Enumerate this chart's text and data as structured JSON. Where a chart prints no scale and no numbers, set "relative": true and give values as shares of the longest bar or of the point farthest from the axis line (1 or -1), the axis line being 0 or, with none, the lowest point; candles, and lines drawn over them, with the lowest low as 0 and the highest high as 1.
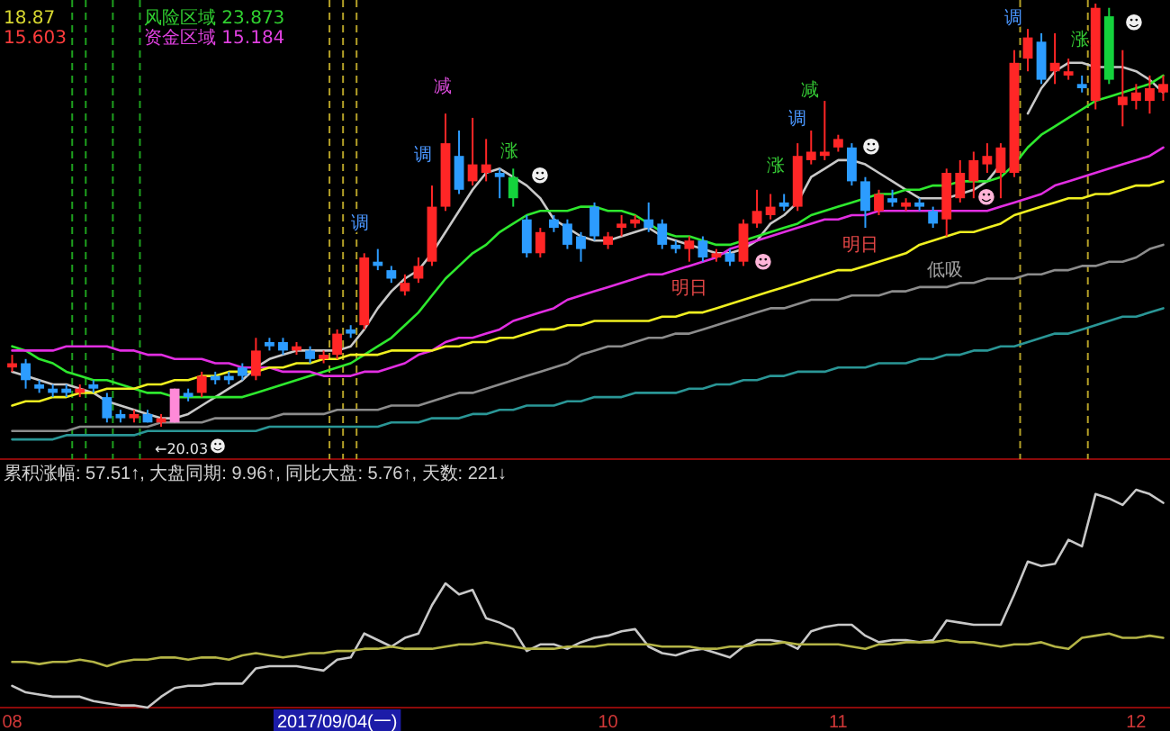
{
  "chart_data": [
    {
      "type": "candlestick",
      "relative": true,
      "tick_labels": false,
      "categories": [
        null,
        null,
        null,
        null,
        null,
        null,
        null,
        null,
        null,
        null,
        null,
        null,
        null,
        null,
        null,
        null,
        null,
        null,
        null,
        null,
        null,
        null,
        null,
        null,
        null,
        null,
        null,
        null,
        null,
        null,
        null,
        null,
        null,
        null,
        null,
        null,
        null,
        null,
        null,
        null,
        null,
        null,
        null,
        null,
        null,
        null,
        null,
        null,
        null,
        null,
        null,
        null,
        null,
        null,
        null,
        null,
        null,
        null,
        null,
        null,
        null,
        null,
        null,
        null,
        null,
        null,
        null,
        null,
        null,
        null,
        null,
        null,
        null,
        null,
        null,
        null,
        null,
        null,
        null,
        null,
        null,
        null,
        null,
        null,
        null,
        null
      ],
      "ohlc": [
        [
          0.14,
          0.17,
          0.13,
          0.15
        ],
        [
          0.15,
          0.16,
          0.09,
          0.11
        ],
        [
          0.1,
          0.11,
          0.08,
          0.09
        ],
        [
          0.09,
          0.1,
          0.07,
          0.08
        ],
        [
          0.09,
          0.1,
          0.07,
          0.08
        ],
        [
          0.08,
          0.1,
          0.07,
          0.09
        ],
        [
          0.1,
          0.11,
          0.08,
          0.09
        ],
        [
          0.07,
          0.08,
          0.01,
          0.02
        ],
        [
          0.03,
          0.04,
          0.01,
          0.02
        ],
        [
          0.02,
          0.04,
          0.01,
          0.03
        ],
        [
          0.03,
          0.04,
          0.01,
          0.01
        ],
        [
          0.01,
          0.03,
          0.0,
          0.02
        ],
        [
          0.01,
          0.09,
          0.01,
          0.09
        ],
        [
          0.08,
          0.09,
          0.06,
          0.07
        ],
        [
          0.08,
          0.13,
          0.07,
          0.12
        ],
        [
          0.12,
          0.13,
          0.1,
          0.11
        ],
        [
          0.12,
          0.13,
          0.1,
          0.11
        ],
        [
          0.14,
          0.15,
          0.11,
          0.12
        ],
        [
          0.12,
          0.21,
          0.11,
          0.18
        ],
        [
          0.2,
          0.21,
          0.18,
          0.19
        ],
        [
          0.2,
          0.21,
          0.17,
          0.18
        ],
        [
          0.18,
          0.2,
          0.17,
          0.19
        ],
        [
          0.18,
          0.19,
          0.15,
          0.16
        ],
        [
          0.16,
          0.18,
          0.15,
          0.17
        ],
        [
          0.17,
          0.23,
          0.16,
          0.22
        ],
        [
          0.23,
          0.24,
          0.21,
          0.22
        ],
        [
          0.24,
          0.41,
          0.23,
          0.4
        ],
        [
          0.39,
          0.42,
          0.37,
          0.38
        ],
        [
          0.37,
          0.38,
          0.34,
          0.35
        ],
        [
          0.32,
          0.36,
          0.31,
          0.34
        ],
        [
          0.35,
          0.4,
          0.34,
          0.38
        ],
        [
          0.39,
          0.57,
          0.38,
          0.52
        ],
        [
          0.52,
          0.74,
          0.51,
          0.67
        ],
        [
          0.64,
          0.7,
          0.55,
          0.56
        ],
        [
          0.58,
          0.73,
          0.57,
          0.62
        ],
        [
          0.6,
          0.68,
          0.58,
          0.62
        ],
        [
          0.6,
          0.61,
          0.54,
          0.59
        ],
        [
          0.59,
          0.61,
          0.52,
          0.54
        ],
        [
          0.49,
          0.5,
          0.4,
          0.41
        ],
        [
          0.41,
          0.47,
          0.4,
          0.46
        ],
        [
          0.49,
          0.5,
          0.46,
          0.47
        ],
        [
          0.48,
          0.49,
          0.42,
          0.43
        ],
        [
          0.45,
          0.46,
          0.39,
          0.42
        ],
        [
          0.52,
          0.53,
          0.44,
          0.45
        ],
        [
          0.43,
          0.46,
          0.42,
          0.45
        ],
        [
          0.47,
          0.5,
          0.45,
          0.48
        ],
        [
          0.48,
          0.5,
          0.47,
          0.49
        ],
        [
          0.49,
          0.53,
          0.46,
          0.47
        ],
        [
          0.48,
          0.49,
          0.42,
          0.43
        ],
        [
          0.43,
          0.44,
          0.41,
          0.42
        ],
        [
          0.42,
          0.45,
          0.39,
          0.44
        ],
        [
          0.44,
          0.45,
          0.39,
          0.4
        ],
        [
          0.4,
          0.42,
          0.39,
          0.41
        ],
        [
          0.41,
          0.42,
          0.38,
          0.39
        ],
        [
          0.39,
          0.49,
          0.38,
          0.48
        ],
        [
          0.48,
          0.56,
          0.47,
          0.51
        ],
        [
          0.5,
          0.55,
          0.49,
          0.52
        ],
        [
          0.53,
          0.55,
          0.51,
          0.52
        ],
        [
          0.52,
          0.67,
          0.51,
          0.64
        ],
        [
          0.63,
          0.7,
          0.62,
          0.65
        ],
        [
          0.64,
          0.77,
          0.63,
          0.65
        ],
        [
          0.66,
          0.69,
          0.65,
          0.68
        ],
        [
          0.66,
          0.67,
          0.57,
          0.58
        ],
        [
          0.58,
          0.59,
          0.47,
          0.51
        ],
        [
          0.51,
          0.56,
          0.5,
          0.55
        ],
        [
          0.54,
          0.56,
          0.52,
          0.53
        ],
        [
          0.52,
          0.54,
          0.51,
          0.53
        ],
        [
          0.53,
          0.54,
          0.51,
          0.52
        ],
        [
          0.51,
          0.52,
          0.47,
          0.48
        ],
        [
          0.49,
          0.61,
          0.45,
          0.6
        ],
        [
          0.54,
          0.63,
          0.53,
          0.6
        ],
        [
          0.58,
          0.65,
          0.54,
          0.63
        ],
        [
          0.62,
          0.67,
          0.6,
          0.64
        ],
        [
          0.6,
          0.67,
          0.54,
          0.66
        ],
        [
          0.6,
          0.89,
          0.59,
          0.86
        ],
        [
          0.87,
          0.94,
          0.84,
          0.92
        ],
        [
          0.91,
          0.93,
          0.81,
          0.82
        ],
        [
          0.84,
          0.93,
          0.81,
          0.86
        ],
        [
          0.83,
          0.87,
          0.82,
          0.84
        ],
        [
          0.81,
          0.83,
          0.79,
          0.8
        ],
        [
          0.77,
          1.0,
          0.75,
          0.99
        ],
        [
          0.97,
          0.99,
          0.81,
          0.82
        ],
        [
          0.76,
          0.89,
          0.71,
          0.78
        ],
        [
          0.77,
          0.81,
          0.75,
          0.79
        ],
        [
          0.77,
          0.83,
          0.74,
          0.8
        ],
        [
          0.79,
          0.83,
          0.77,
          0.81
        ]
      ],
      "colors": [
        "#ff2626",
        "#2c9cff",
        "#2c9cff",
        "#2c9cff",
        "#2c9cff",
        "#ff2626",
        "#2c9cff",
        "#2c9cff",
        "#2c9cff",
        "#ff2626",
        "#2c9cff",
        "#ff2626",
        "#ff8ad8",
        "#2c9cff",
        "#ff2626",
        "#2c9cff",
        "#2c9cff",
        "#2c9cff",
        "#ff2626",
        "#2c9cff",
        "#2c9cff",
        "#ff2626",
        "#2c9cff",
        "#ff2626",
        "#ff2626",
        "#2c9cff",
        "#ff2626",
        "#2c9cff",
        "#2c9cff",
        "#ff2626",
        "#ff2626",
        "#ff2626",
        "#ff2626",
        "#2c9cff",
        "#ff2626",
        "#ff2626",
        "#2c9cff",
        "#14d23c",
        "#2c9cff",
        "#ff2626",
        "#2c9cff",
        "#2c9cff",
        "#2c9cff",
        "#2c9cff",
        "#ff2626",
        "#ff2626",
        "#ff2626",
        "#2c9cff",
        "#2c9cff",
        "#2c9cff",
        "#ff2626",
        "#2c9cff",
        "#ff2626",
        "#2c9cff",
        "#ff2626",
        "#ff2626",
        "#ff2626",
        "#2c9cff",
        "#ff2626",
        "#ff2626",
        "#ff2626",
        "#ff2626",
        "#2c9cff",
        "#2c9cff",
        "#ff2626",
        "#2c9cff",
        "#ff2626",
        "#2c9cff",
        "#2c9cff",
        "#ff2626",
        "#ff2626",
        "#ff2626",
        "#ff2626",
        "#ff2626",
        "#ff2626",
        "#ff2626",
        "#2c9cff",
        "#ff2626",
        "#ff2626",
        "#2c9cff",
        "#ff2626",
        "#14d23c",
        "#ff2626",
        "#ff2626",
        "#ff2626",
        "#ff2626"
      ],
      "series": [
        {
          "type": "line",
          "color": "#c8c8c8",
          "values": [
            0.13,
            0.12,
            0.11,
            0.1,
            0.1,
            0.09,
            0.08,
            0.06,
            0.05,
            0.04,
            0.03,
            0.02,
            0.02,
            0.03,
            0.05,
            0.07,
            0.09,
            0.11,
            0.14,
            0.16,
            0.17,
            0.18,
            0.18,
            0.18,
            0.18,
            0.19,
            0.23,
            0.28,
            0.32,
            0.35,
            0.37,
            0.41,
            0.46,
            0.51,
            0.56,
            0.6,
            0.61,
            0.59,
            0.57,
            0.54,
            0.49,
            0.47,
            0.45,
            0.44,
            0.44,
            0.45,
            0.46,
            0.47,
            0.45,
            0.44,
            0.43,
            0.42,
            0.41,
            0.41,
            0.42,
            0.44,
            0.48,
            0.5,
            0.53,
            0.59,
            0.61,
            0.63,
            0.63,
            0.62,
            0.6,
            0.58,
            0.56,
            0.54,
            0.54,
            0.54,
            0.55,
            0.56,
            0.58,
            0.62,
            null,
            0.74,
            0.8,
            0.84,
            0.86,
            0.86,
            0.85,
            0.85,
            0.85,
            0.84,
            0.82,
            0.79
          ]
        },
        {
          "type": "line",
          "color": "#2ee82e",
          "values": [
            0.19,
            0.18,
            0.16,
            0.15,
            0.13,
            0.12,
            0.11,
            0.11,
            0.1,
            0.09,
            0.08,
            0.08,
            0.07,
            0.07,
            0.07,
            0.07,
            0.07,
            0.07,
            0.08,
            0.09,
            0.1,
            0.11,
            0.12,
            0.13,
            0.14,
            0.15,
            0.17,
            0.19,
            0.21,
            0.24,
            0.27,
            0.31,
            0.35,
            0.38,
            0.41,
            0.43,
            0.46,
            0.48,
            0.5,
            0.51,
            0.51,
            0.51,
            0.52,
            0.52,
            0.51,
            0.51,
            0.5,
            0.48,
            0.46,
            0.45,
            0.45,
            0.44,
            0.43,
            0.43,
            0.44,
            0.45,
            0.46,
            0.47,
            0.48,
            0.5,
            0.51,
            0.52,
            0.53,
            0.54,
            0.55,
            0.55,
            0.56,
            0.56,
            0.57,
            0.57,
            0.58,
            0.58,
            0.58,
            0.59,
            0.62,
            0.66,
            0.69,
            0.71,
            0.73,
            0.75,
            0.77,
            0.78,
            0.79,
            0.8,
            0.81,
            0.83
          ]
        },
        {
          "type": "line",
          "color": "#e22ee2",
          "values": [
            0.18,
            0.18,
            0.18,
            0.18,
            0.19,
            0.19,
            0.19,
            0.19,
            0.18,
            0.18,
            0.17,
            0.17,
            0.16,
            0.16,
            0.16,
            0.15,
            0.15,
            0.14,
            0.14,
            0.14,
            0.13,
            0.13,
            0.13,
            0.12,
            0.12,
            0.12,
            0.13,
            0.13,
            0.14,
            0.15,
            0.17,
            0.18,
            0.2,
            0.21,
            0.21,
            0.22,
            0.23,
            0.25,
            0.26,
            0.27,
            0.28,
            0.3,
            0.31,
            0.32,
            0.33,
            0.34,
            0.35,
            0.36,
            0.36,
            0.37,
            0.38,
            0.39,
            0.4,
            0.42,
            0.43,
            0.44,
            0.45,
            0.46,
            0.47,
            0.48,
            0.49,
            0.49,
            0.5,
            0.5,
            0.51,
            0.51,
            0.51,
            0.51,
            0.51,
            0.51,
            0.51,
            0.51,
            0.51,
            0.52,
            0.53,
            0.54,
            0.55,
            0.57,
            0.58,
            0.59,
            0.6,
            0.61,
            0.62,
            0.63,
            0.64,
            0.66
          ]
        },
        {
          "type": "line",
          "color": "#f0f020",
          "values": [
            0.05,
            0.06,
            0.06,
            0.07,
            0.07,
            0.08,
            0.08,
            0.09,
            0.09,
            0.09,
            0.1,
            0.1,
            0.11,
            0.11,
            0.12,
            0.12,
            0.13,
            0.13,
            0.13,
            0.14,
            0.14,
            0.15,
            0.15,
            0.16,
            0.16,
            0.17,
            0.17,
            0.17,
            0.18,
            0.18,
            0.18,
            0.18,
            0.19,
            0.19,
            0.2,
            0.2,
            0.21,
            0.21,
            0.22,
            0.23,
            0.23,
            0.24,
            0.24,
            0.25,
            0.25,
            0.25,
            0.25,
            0.25,
            0.26,
            0.26,
            0.27,
            0.27,
            0.28,
            0.29,
            0.3,
            0.31,
            0.32,
            0.33,
            0.34,
            0.35,
            0.36,
            0.37,
            0.37,
            0.38,
            0.39,
            0.4,
            0.41,
            0.43,
            0.44,
            0.45,
            0.46,
            0.46,
            0.47,
            0.48,
            0.5,
            0.51,
            0.52,
            0.53,
            0.54,
            0.54,
            0.55,
            0.55,
            0.56,
            0.57,
            0.57,
            0.58
          ]
        },
        {
          "type": "line",
          "color": "#8c8c8c",
          "values": [
            -0.01,
            -0.01,
            -0.01,
            -0.01,
            -0.01,
            0.0,
            0.0,
            0.0,
            0.0,
            0.0,
            0.0,
            0.01,
            0.01,
            0.01,
            0.01,
            0.02,
            0.02,
            0.02,
            0.02,
            0.02,
            0.03,
            0.03,
            0.03,
            0.03,
            0.04,
            0.04,
            0.04,
            0.04,
            0.05,
            0.05,
            0.05,
            0.06,
            0.07,
            0.08,
            0.08,
            0.09,
            0.1,
            0.11,
            0.12,
            0.13,
            0.14,
            0.15,
            0.17,
            0.18,
            0.19,
            0.19,
            0.2,
            0.21,
            0.21,
            0.22,
            0.22,
            0.23,
            0.24,
            0.25,
            0.26,
            0.27,
            0.28,
            0.28,
            0.29,
            0.3,
            0.3,
            0.3,
            0.31,
            0.31,
            0.31,
            0.32,
            0.32,
            0.33,
            0.33,
            0.33,
            0.34,
            0.34,
            0.35,
            0.35,
            0.35,
            0.36,
            0.36,
            0.37,
            0.37,
            0.38,
            0.38,
            0.39,
            0.39,
            0.4,
            0.42,
            0.43
          ]
        },
        {
          "type": "line",
          "color": "#2a9696",
          "values": [
            -0.03,
            -0.03,
            -0.03,
            -0.03,
            -0.02,
            -0.02,
            -0.02,
            -0.02,
            -0.02,
            -0.02,
            -0.01,
            -0.01,
            -0.01,
            -0.01,
            -0.01,
            -0.01,
            -0.01,
            -0.01,
            -0.01,
            0.0,
            0.0,
            0.0,
            0.0,
            0.0,
            0.0,
            0.0,
            0.0,
            0.0,
            0.01,
            0.01,
            0.01,
            0.02,
            0.02,
            0.02,
            0.03,
            0.03,
            0.04,
            0.04,
            0.05,
            0.05,
            0.05,
            0.06,
            0.06,
            0.07,
            0.07,
            0.07,
            0.08,
            0.08,
            0.08,
            0.08,
            0.09,
            0.09,
            0.1,
            0.1,
            0.11,
            0.11,
            0.12,
            0.12,
            0.13,
            0.13,
            0.13,
            0.14,
            0.14,
            0.14,
            0.15,
            0.15,
            0.15,
            0.16,
            0.16,
            0.17,
            0.17,
            0.18,
            0.18,
            0.19,
            0.19,
            0.2,
            0.21,
            0.22,
            0.22,
            0.23,
            0.24,
            0.25,
            0.26,
            0.26,
            0.27,
            0.28
          ]
        }
      ],
      "annotations": [
        "18.87",
        "风险区域 23.873",
        "15.603",
        "资金区域 15.184",
        "←20.03",
        "减",
        "调",
        "涨",
        "调",
        "☻",
        "☻",
        "减",
        "调",
        "涨",
        "☻",
        "☻",
        "明日",
        "明日",
        "低吸",
        "☻",
        "调",
        "涨",
        "☻"
      ]
    },
    {
      "type": "line",
      "relative": true,
      "tick_labels": "x",
      "title": "累积涨幅: 57.51↑, 大盘同期: 9.96↑, 同比大盘: 5.76↑, 天数: 221↓",
      "categories": [
        "08",
        null,
        null,
        null,
        null,
        null,
        null,
        null,
        null,
        null,
        null,
        null,
        null,
        null,
        null,
        null,
        null,
        null,
        null,
        null,
        null,
        null,
        null,
        null,
        "2017/09/04(一)",
        null,
        null,
        null,
        null,
        null,
        null,
        null,
        null,
        null,
        null,
        null,
        null,
        null,
        null,
        null,
        null,
        null,
        null,
        null,
        "10",
        null,
        null,
        null,
        null,
        null,
        null,
        null,
        null,
        null,
        null,
        null,
        null,
        null,
        null,
        null,
        null,
        "11",
        null,
        null,
        null,
        null,
        null,
        null,
        null,
        null,
        null,
        null,
        null,
        null,
        null,
        null,
        null,
        null,
        null,
        null,
        null,
        null,
        null,
        "12",
        null,
        null
      ],
      "series": [
        {
          "color": "#c8c8c8",
          "values": [
            0.1,
            0.07,
            0.06,
            0.05,
            0.05,
            0.05,
            0.03,
            0.02,
            0.01,
            0.01,
            0.0,
            0.05,
            0.09,
            0.1,
            0.1,
            0.11,
            0.11,
            0.11,
            0.18,
            0.19,
            0.19,
            0.19,
            0.18,
            0.17,
            0.22,
            0.23,
            0.34,
            0.31,
            0.28,
            0.32,
            0.34,
            0.47,
            0.57,
            0.52,
            0.54,
            0.41,
            0.39,
            0.36,
            0.26,
            0.29,
            0.29,
            0.27,
            0.3,
            0.32,
            0.33,
            0.35,
            0.36,
            0.28,
            0.25,
            0.24,
            0.26,
            0.27,
            0.25,
            0.23,
            0.28,
            0.31,
            0.31,
            0.3,
            0.27,
            0.35,
            0.37,
            0.38,
            0.38,
            0.33,
            0.3,
            0.31,
            0.31,
            0.3,
            0.31,
            0.4,
            0.39,
            0.38,
            0.38,
            0.38,
            0.52,
            0.67,
            0.65,
            0.66,
            0.77,
            0.74,
            0.98,
            0.96,
            0.93,
            1.0,
            0.98,
            0.94
          ]
        },
        {
          "color": "#b4b446",
          "values": [
            0.21,
            0.21,
            0.2,
            0.21,
            0.21,
            0.22,
            0.21,
            0.19,
            0.21,
            0.22,
            0.22,
            0.23,
            0.23,
            0.22,
            0.23,
            0.23,
            0.22,
            0.24,
            0.25,
            0.24,
            0.23,
            0.24,
            0.25,
            0.25,
            0.26,
            0.26,
            0.27,
            0.27,
            0.28,
            0.27,
            0.27,
            0.27,
            0.28,
            0.29,
            0.29,
            0.3,
            0.29,
            0.28,
            0.27,
            0.27,
            0.27,
            0.28,
            0.28,
            0.28,
            0.29,
            0.29,
            0.29,
            0.29,
            0.28,
            0.28,
            0.28,
            0.27,
            0.27,
            0.28,
            0.28,
            0.29,
            0.29,
            0.3,
            0.29,
            0.29,
            0.29,
            0.29,
            0.28,
            0.27,
            0.29,
            0.29,
            0.3,
            0.3,
            0.3,
            0.31,
            0.3,
            0.3,
            0.29,
            0.28,
            0.29,
            0.29,
            0.3,
            0.28,
            0.27,
            0.32,
            0.33,
            0.34,
            0.32,
            0.32,
            0.33,
            0.32
          ]
        }
      ]
    }
  ]
}
